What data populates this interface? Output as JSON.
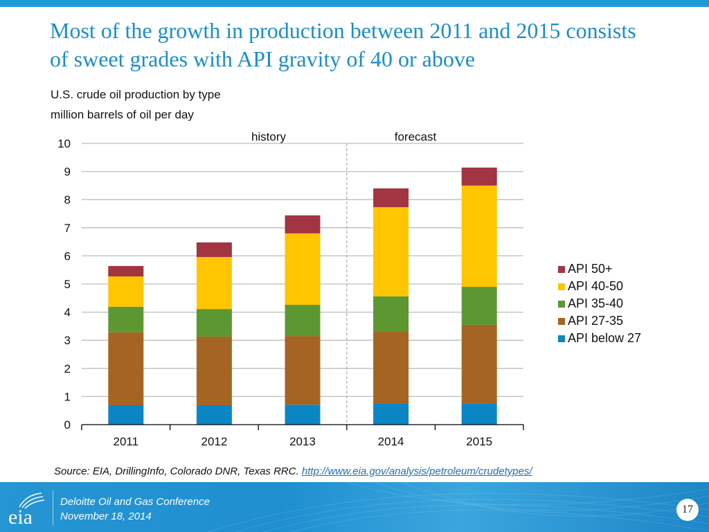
{
  "slide": {
    "title": "Most of the growth in production between 2011 and 2015 consists of sweet grades with API gravity of 40 or above",
    "subtitle_line1": "U.S. crude oil production by type",
    "subtitle_line2": "million barrels of oil per day",
    "source_prefix": "Source: EIA, DrillingInfo, Colorado DNR, Texas RRC. ",
    "source_link": "http://www.eia.gov/analysis/petroleum/crudetypes/",
    "footer_line1": "Deloitte Oil and Gas Conference",
    "footer_line2": "November 18, 2014",
    "page_number": "17",
    "logo_text": "eia",
    "colors": {
      "accent": "#1a8ec9",
      "top_bar": "#1a9ad6"
    }
  },
  "chart_data": {
    "type": "bar",
    "stacked": true,
    "title": "U.S. crude oil production by type",
    "xlabel": "",
    "ylabel": "million barrels of oil per day",
    "categories": [
      "2011",
      "2012",
      "2013",
      "2014",
      "2015"
    ],
    "ylim": [
      0,
      10
    ],
    "yticks": [
      0,
      1,
      2,
      3,
      4,
      5,
      6,
      7,
      8,
      9,
      10
    ],
    "grid": true,
    "legend_position": "right",
    "annotations": [
      {
        "text": "history",
        "region": "2011-2013"
      },
      {
        "text": "forecast",
        "region": "2014-2015"
      }
    ],
    "divider_between": [
      "2013",
      "2014"
    ],
    "series": [
      {
        "name": "API below 27",
        "color": "#0a86c4",
        "values": [
          0.69,
          0.69,
          0.71,
          0.74,
          0.76
        ]
      },
      {
        "name": "API 27-35",
        "color": "#a66423",
        "values": [
          2.59,
          2.44,
          2.44,
          2.56,
          2.79
        ]
      },
      {
        "name": "API 35-40",
        "color": "#5d9732",
        "values": [
          0.91,
          0.98,
          1.11,
          1.26,
          1.35
        ]
      },
      {
        "name": "API 40-50",
        "color": "#ffc501",
        "values": [
          1.08,
          1.85,
          2.54,
          3.17,
          3.6
        ]
      },
      {
        "name": "API 50+",
        "color": "#a33441",
        "values": [
          0.37,
          0.52,
          0.64,
          0.67,
          0.64
        ]
      }
    ],
    "legend_order": [
      "API 50+",
      "API 40-50",
      "API 35-40",
      "API 27-35",
      "API below 27"
    ]
  }
}
